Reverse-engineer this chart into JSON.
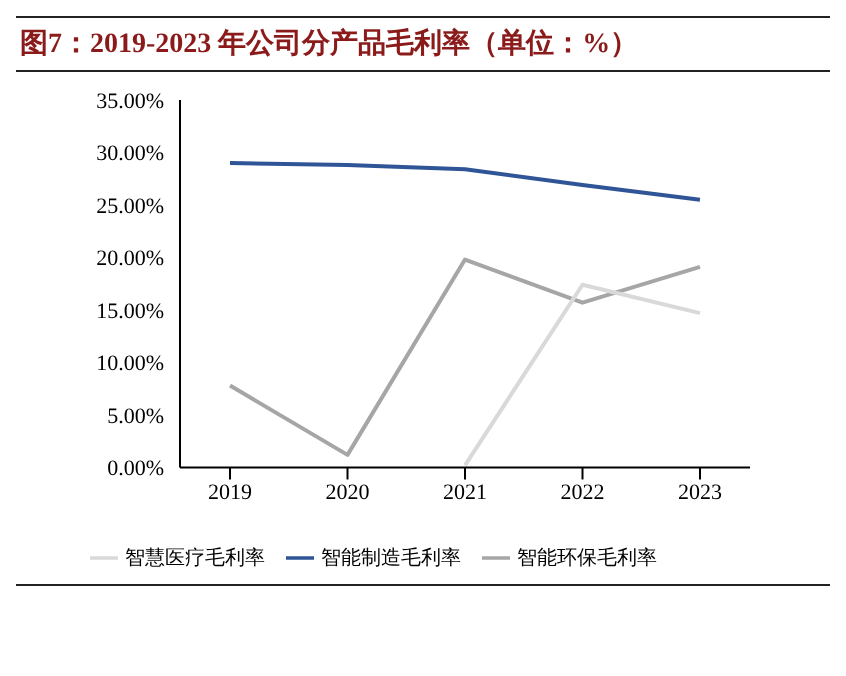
{
  "chart_data": {
    "type": "line",
    "title": "图7：2019-2023 年公司分产品毛利率（单位：%）",
    "categories": [
      "2019",
      "2020",
      "2021",
      "2022",
      "2023"
    ],
    "series": [
      {
        "name": "智能制造毛利率",
        "color": "#2f5597",
        "values": [
          29.0,
          28.8,
          28.4,
          26.9,
          25.5
        ]
      },
      {
        "name": "智能环保毛利率",
        "color": "#a6a6a6",
        "values": [
          7.8,
          1.2,
          19.8,
          15.7,
          19.1
        ]
      },
      {
        "name": "智慧医疗毛利率",
        "color": "#d9d9d9",
        "values": [
          null,
          null,
          0.2,
          17.4,
          14.7
        ]
      }
    ],
    "ylim": [
      0,
      35
    ],
    "yticks": [
      {
        "value": 0,
        "label": "0.00%"
      },
      {
        "value": 5,
        "label": "5.00%"
      },
      {
        "value": 10,
        "label": "10.00%"
      },
      {
        "value": 15,
        "label": "15.00%"
      },
      {
        "value": 20,
        "label": "20.00%"
      },
      {
        "value": 25,
        "label": "25.00%"
      },
      {
        "value": 30,
        "label": "30.00%"
      },
      {
        "value": 35,
        "label": "35.00%"
      }
    ],
    "grid": false,
    "legend": "bottom",
    "marker": "none",
    "line_style": "solid"
  }
}
